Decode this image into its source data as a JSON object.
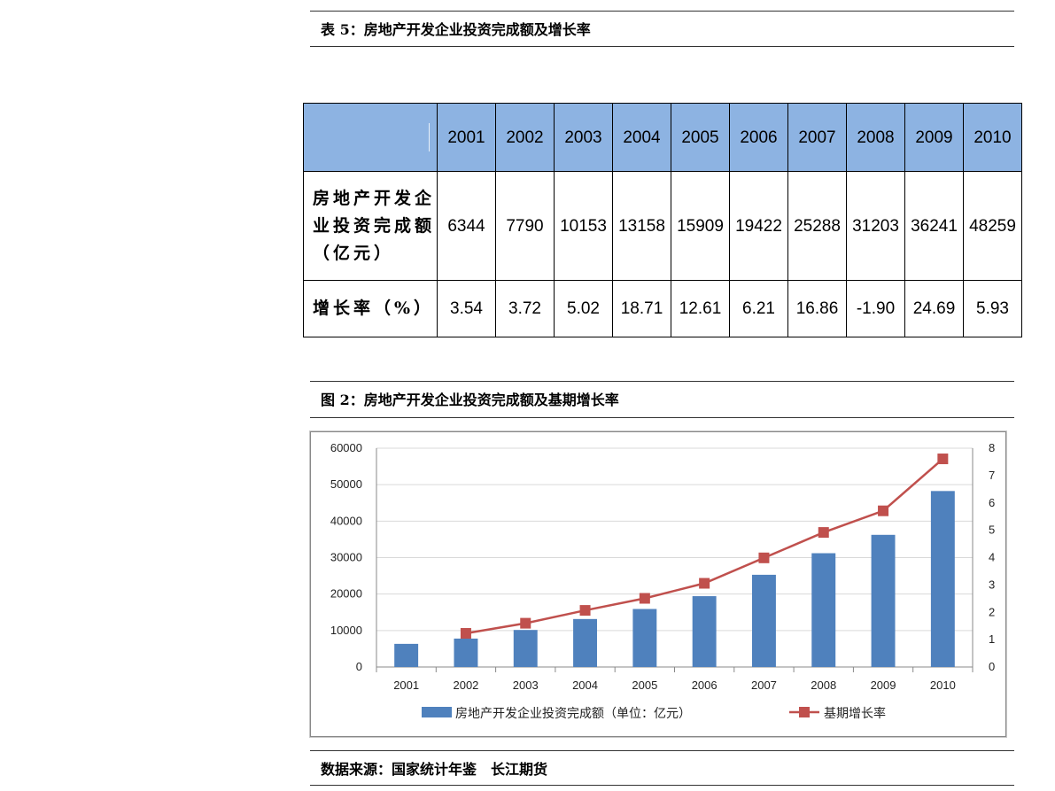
{
  "table_caption": "表 5：房地产开发企业投资完成额及增长率",
  "table": {
    "years": [
      "2001",
      "2002",
      "2003",
      "2004",
      "2005",
      "2006",
      "2007",
      "2008",
      "2009",
      "2010"
    ],
    "row1_label": "房地产开发企业投资完成额（亿元）",
    "row1_values": [
      "6344",
      "7790",
      "10153",
      "13158",
      "15909",
      "19422",
      "25288",
      "31203",
      "36241",
      "48259"
    ],
    "row2_label": "增长率（%）",
    "row2_values": [
      "3.54",
      "3.72",
      "5.02",
      "18.71",
      "12.61",
      "6.21",
      "16.86",
      "-1.90",
      "24.69",
      "5.93"
    ]
  },
  "chart_caption": "图 2：房地产开发企业投资完成额及基期增长率",
  "chart_data": {
    "type": "bar",
    "categories": [
      "2001",
      "2002",
      "2003",
      "2004",
      "2005",
      "2006",
      "2007",
      "2008",
      "2009",
      "2010"
    ],
    "series": [
      {
        "name": "房地产开发企业投资完成额（单位：亿元）",
        "chart": "bar",
        "axis": "left",
        "color": "#4f81bd",
        "values": [
          6344,
          7790,
          10153,
          13158,
          15909,
          19422,
          25288,
          31203,
          36241,
          48259
        ]
      },
      {
        "name": "基期增长率",
        "chart": "line",
        "axis": "right",
        "color": "#c0504d",
        "values": [
          null,
          1.23,
          1.6,
          2.07,
          2.51,
          3.06,
          3.99,
          4.92,
          5.71,
          7.61
        ]
      }
    ],
    "ylim_left": [
      0,
      60000
    ],
    "yticks_left": [
      "0",
      "10000",
      "20000",
      "30000",
      "40000",
      "50000",
      "60000"
    ],
    "ylim_right": [
      0,
      8
    ],
    "yticks_right": [
      "0",
      "1",
      "2",
      "3",
      "4",
      "5",
      "6",
      "7",
      "8"
    ],
    "grid": "horizontal",
    "legend": "bottom"
  },
  "source_note": "数据来源：国家统计年鉴　长江期货"
}
